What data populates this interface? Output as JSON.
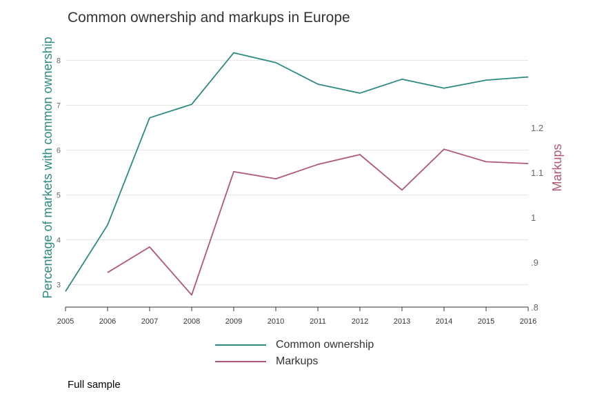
{
  "chart_data": {
    "type": "line",
    "title": "Common ownership and markups in Europe",
    "x": [
      "2005",
      "2006",
      "2007",
      "2008",
      "2009",
      "2010",
      "2011",
      "2012",
      "2013",
      "2014",
      "2015",
      "2016"
    ],
    "y_left": {
      "label": "Percentage of markets with common ownership",
      "lim": [
        2.5,
        8.5
      ],
      "ticks": [
        3,
        4,
        5,
        6,
        7,
        8
      ],
      "tick_labels": [
        "3",
        "4",
        "5",
        "6",
        "7",
        "8"
      ],
      "color": "#2a8a80"
    },
    "y_right": {
      "label": "Markups",
      "lim": [
        0.8,
        1.3
      ],
      "ticks": [
        0.8,
        0.9,
        1.0,
        1.1,
        1.2
      ],
      "tick_labels": [
        ".8",
        ".9",
        "1",
        "1.1",
        "1.2"
      ],
      "color": "#b0586f"
    },
    "series": [
      {
        "name": "Common ownership",
        "axis": "left",
        "color": "#2a8a80",
        "values": [
          2.85,
          4.33,
          6.72,
          7.02,
          8.17,
          7.95,
          7.47,
          7.27,
          7.58,
          7.38,
          7.56,
          7.63
        ]
      },
      {
        "name": "Markups",
        "axis": "right",
        "color": "#b0586f",
        "values": [
          null,
          0.877,
          0.934,
          0.827,
          1.102,
          1.086,
          1.118,
          1.14,
          1.061,
          1.152,
          1.124,
          1.12
        ]
      }
    ],
    "grid": true,
    "legend_placement": "bottom"
  },
  "footnote": "Full sample"
}
